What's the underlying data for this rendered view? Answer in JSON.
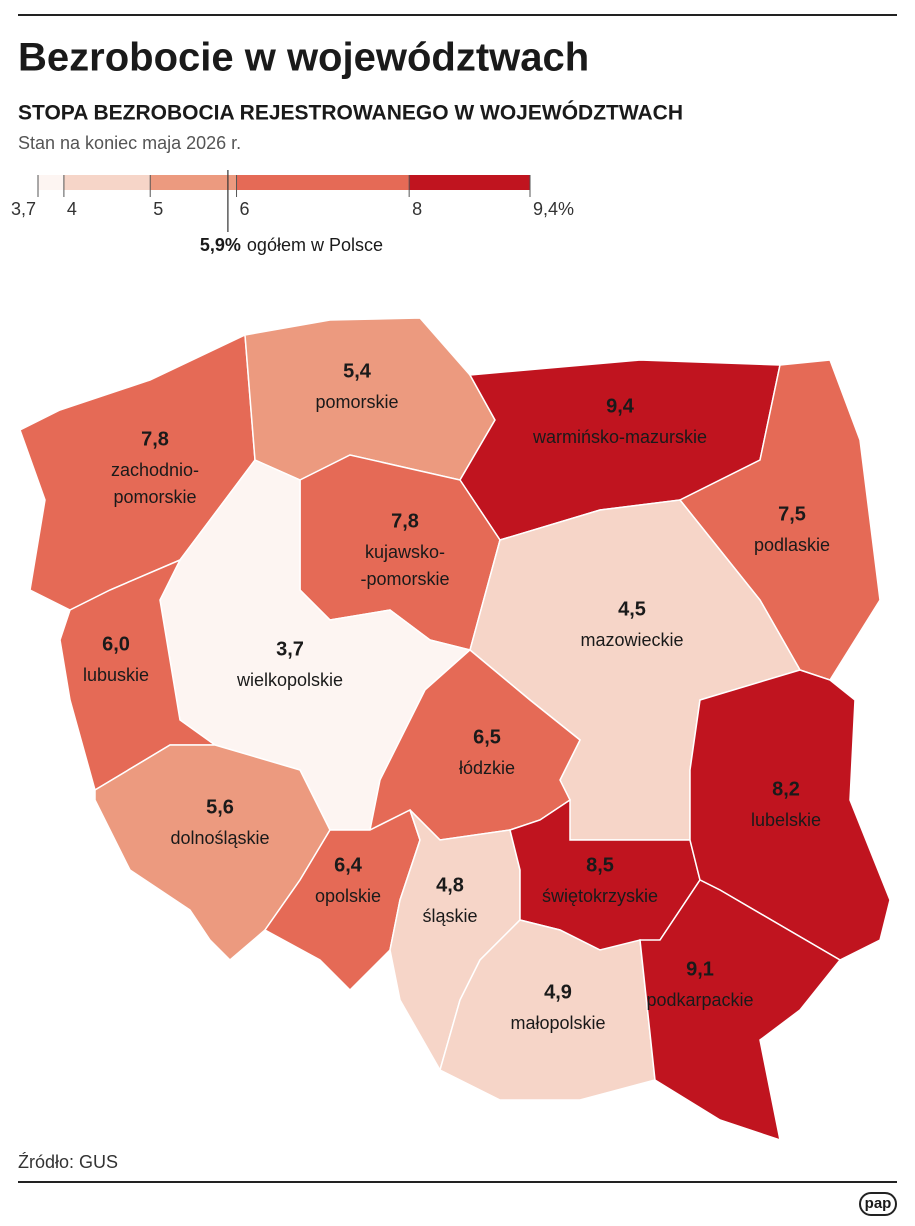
{
  "title": "Bezrobocie w województwach",
  "subtitle": "STOPA BEZROBOCIA REJESTROWANEGO W WOJEWÓDZTWACH",
  "note": "Stan na koniec maja 2026 r.",
  "legend": {
    "ticks": [
      {
        "value": 3.7,
        "label": "3,7"
      },
      4,
      5,
      6,
      8,
      {
        "value": 9.4,
        "label": "9,4%"
      }
    ],
    "colors": [
      "#fdf5f2",
      "#f6d5c8",
      "#ec9a7f",
      "#e56a56",
      "#c0141f"
    ]
  },
  "national": {
    "value": 5.9,
    "value_label": "5,9%",
    "label": "ogółem w Polsce"
  },
  "regions": [
    {
      "name": "zachodnio-\npomorskie",
      "value": 7.8,
      "value_label": "7,8"
    },
    {
      "name": "pomorskie",
      "value": 5.4,
      "value_label": "5,4"
    },
    {
      "name": "warmińsko-mazurskie",
      "value": 9.4,
      "value_label": "9,4"
    },
    {
      "name": "podlaskie",
      "value": 7.5,
      "value_label": "7,5"
    },
    {
      "name": "kujawsko-\n-pomorskie",
      "value": 7.8,
      "value_label": "7,8"
    },
    {
      "name": "wielkopolskie",
      "value": 3.7,
      "value_label": "3,7"
    },
    {
      "name": "lubuskie",
      "value": 6.0,
      "value_label": "6,0"
    },
    {
      "name": "mazowieckie",
      "value": 4.5,
      "value_label": "4,5"
    },
    {
      "name": "łódzkie",
      "value": 6.5,
      "value_label": "6,5"
    },
    {
      "name": "dolnośląskie",
      "value": 5.6,
      "value_label": "5,6"
    },
    {
      "name": "opolskie",
      "value": 6.4,
      "value_label": "6,4"
    },
    {
      "name": "śląskie",
      "value": 4.8,
      "value_label": "4,8"
    },
    {
      "name": "świętokrzyskie",
      "value": 8.5,
      "value_label": "8,5"
    },
    {
      "name": "małopolskie",
      "value": 4.9,
      "value_label": "4,9"
    },
    {
      "name": "lubelskie",
      "value": 8.2,
      "value_label": "8,2"
    },
    {
      "name": "podkarpackie",
      "value": 9.1,
      "value_label": "9,1"
    }
  ],
  "source": "Źródło: GUS",
  "logo": "pap"
}
